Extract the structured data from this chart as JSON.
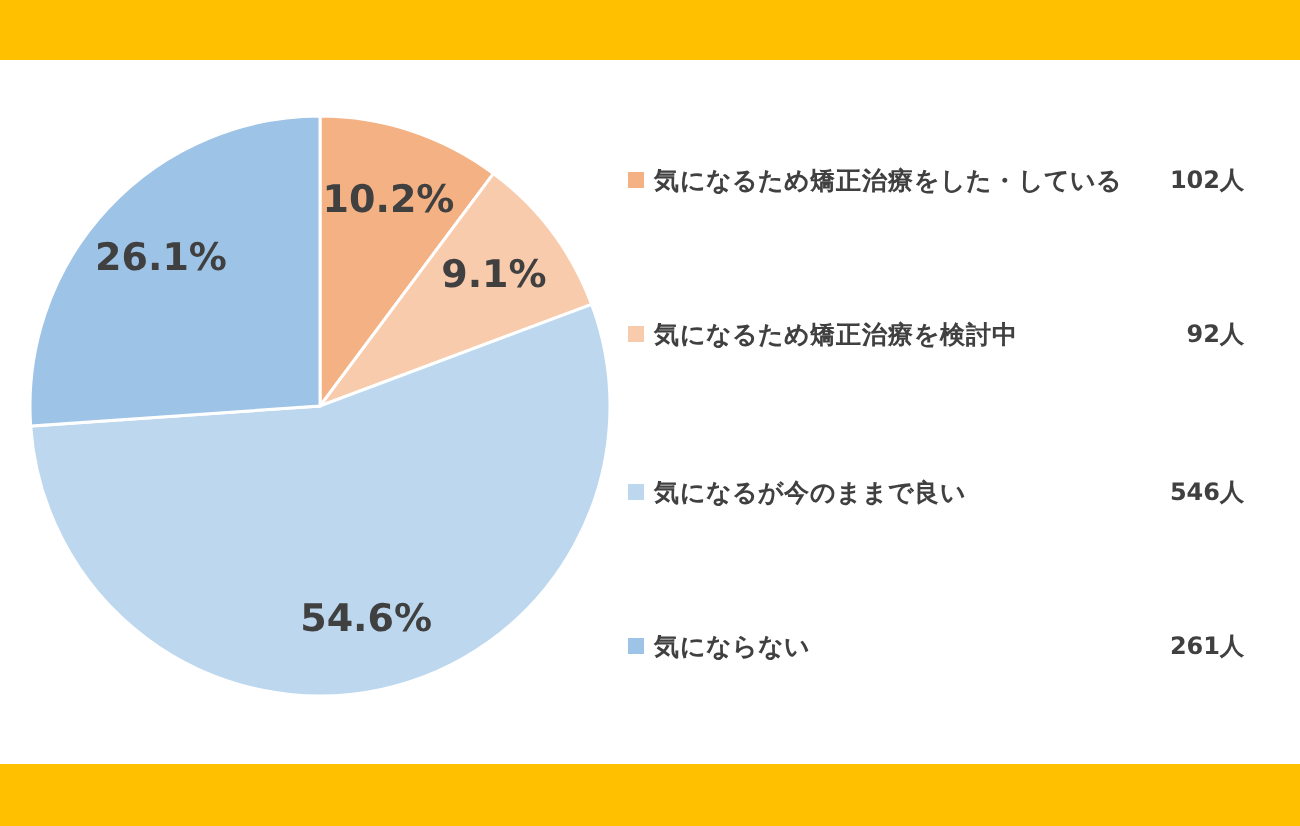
{
  "chart_data": {
    "type": "pie",
    "categories": [
      "気になるため矯正治療をした・している",
      "気になるため矯正治療を検討中",
      "気になるが今のままで良い",
      "気にならない"
    ],
    "values": [
      10.2,
      9.1,
      54.6,
      26.1
    ],
    "value_labels": [
      "10.2%",
      "9.1%",
      "54.6%",
      "26.1%"
    ],
    "colors": [
      "#f4b183",
      "#f8cbad",
      "#bdd7ee",
      "#9dc3e6"
    ],
    "legend": "right",
    "annotations": [
      "102人",
      "92人",
      "546人",
      "261人"
    ]
  }
}
